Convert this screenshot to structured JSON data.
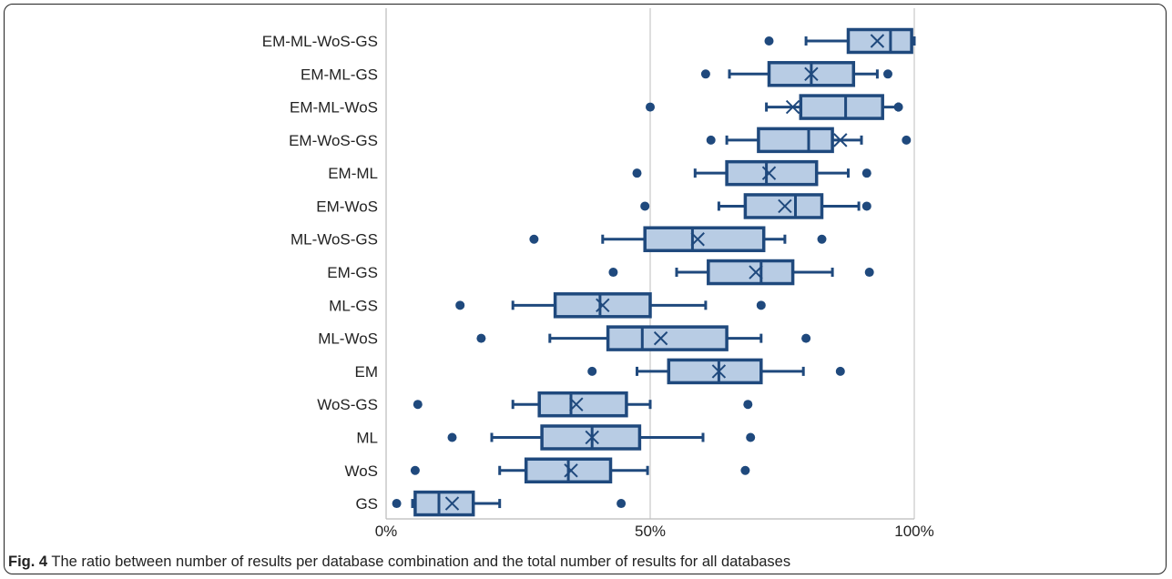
{
  "chart_data": {
    "type": "boxplot",
    "orientation": "horizontal",
    "title": "",
    "xlabel": "",
    "ylabel": "",
    "xlim": [
      0,
      100
    ],
    "x_ticks": [
      "0%",
      "50%",
      "100%"
    ],
    "x_tick_values": [
      0,
      50,
      100
    ],
    "gridlines": [
      50,
      100
    ],
    "colors": {
      "box_fill": "#b8cce4",
      "box_stroke": "#1f497d",
      "grid": "#c8c8c8"
    },
    "categories": [
      "EM-ML-WoS-GS",
      "EM-ML-GS",
      "EM-ML-WoS",
      "EM-WoS-GS",
      "EM-ML",
      "EM-WoS",
      "ML-WoS-GS",
      "EM-GS",
      "ML-GS",
      "ML-WoS",
      "EM",
      "WoS-GS",
      "ML",
      "WoS",
      "GS"
    ],
    "boxes": [
      {
        "category": "EM-ML-WoS-GS",
        "whisker_low": 79.5,
        "q1": 87.5,
        "median": 95.5,
        "q3": 99.5,
        "whisker_high": 100,
        "mean": 93,
        "outliers": [
          72.5
        ]
      },
      {
        "category": "EM-ML-GS",
        "whisker_low": 65,
        "q1": 72.5,
        "median": 80.5,
        "q3": 88.5,
        "whisker_high": 93,
        "mean": 80.5,
        "outliers": [
          60.5,
          95
        ]
      },
      {
        "category": "EM-ML-WoS",
        "whisker_low": 72,
        "q1": 78.5,
        "median": 87,
        "q3": 94,
        "whisker_high": 97,
        "mean": 77,
        "outliers": [
          50,
          97
        ]
      },
      {
        "category": "EM-WoS-GS",
        "whisker_low": 64.5,
        "q1": 70.5,
        "median": 80,
        "q3": 84.5,
        "whisker_high": 90,
        "mean": 86,
        "outliers": [
          61.5,
          98.5
        ]
      },
      {
        "category": "EM-ML",
        "whisker_low": 58.5,
        "q1": 64.5,
        "median": 72,
        "q3": 81.5,
        "whisker_high": 87.5,
        "mean": 72.5,
        "outliers": [
          47.5,
          91
        ]
      },
      {
        "category": "EM-WoS",
        "whisker_low": 63,
        "q1": 68,
        "median": 77.5,
        "q3": 82.5,
        "whisker_high": 89.5,
        "mean": 75.5,
        "outliers": [
          49,
          91
        ]
      },
      {
        "category": "ML-WoS-GS",
        "whisker_low": 41,
        "q1": 49,
        "median": 58,
        "q3": 71.5,
        "whisker_high": 75.5,
        "mean": 59,
        "outliers": [
          28,
          82.5
        ]
      },
      {
        "category": "EM-GS",
        "whisker_low": 55,
        "q1": 61,
        "median": 71,
        "q3": 77,
        "whisker_high": 84.5,
        "mean": 70,
        "outliers": [
          43,
          91.5
        ]
      },
      {
        "category": "ML-GS",
        "whisker_low": 24,
        "q1": 32,
        "median": 40.5,
        "q3": 50,
        "whisker_high": 60.5,
        "mean": 41,
        "outliers": [
          14,
          71
        ]
      },
      {
        "category": "ML-WoS",
        "whisker_low": 31,
        "q1": 42,
        "median": 48.5,
        "q3": 64.5,
        "whisker_high": 71,
        "mean": 52,
        "outliers": [
          18,
          79.5
        ]
      },
      {
        "category": "EM",
        "whisker_low": 47.5,
        "q1": 53.5,
        "median": 63,
        "q3": 71,
        "whisker_high": 79,
        "mean": 63,
        "outliers": [
          39,
          86
        ]
      },
      {
        "category": "WoS-GS",
        "whisker_low": 24,
        "q1": 29,
        "median": 35,
        "q3": 45.5,
        "whisker_high": 50,
        "mean": 36,
        "outliers": [
          6,
          68.5
        ]
      },
      {
        "category": "ML",
        "whisker_low": 20,
        "q1": 29.5,
        "median": 39,
        "q3": 48,
        "whisker_high": 60,
        "mean": 39,
        "outliers": [
          12.5,
          69
        ]
      },
      {
        "category": "WoS",
        "whisker_low": 21.5,
        "q1": 26.5,
        "median": 34.5,
        "q3": 42.5,
        "whisker_high": 49.5,
        "mean": 35,
        "outliers": [
          5.5,
          68
        ]
      },
      {
        "category": "GS",
        "whisker_low": 5,
        "q1": 5.5,
        "median": 10,
        "q3": 16.5,
        "whisker_high": 21.5,
        "mean": 12.5,
        "outliers": [
          2,
          44.5
        ]
      }
    ]
  },
  "caption": {
    "label": "Fig. 4",
    "text": " The ratio between number of results per database combination and the total number of results for all databases"
  }
}
